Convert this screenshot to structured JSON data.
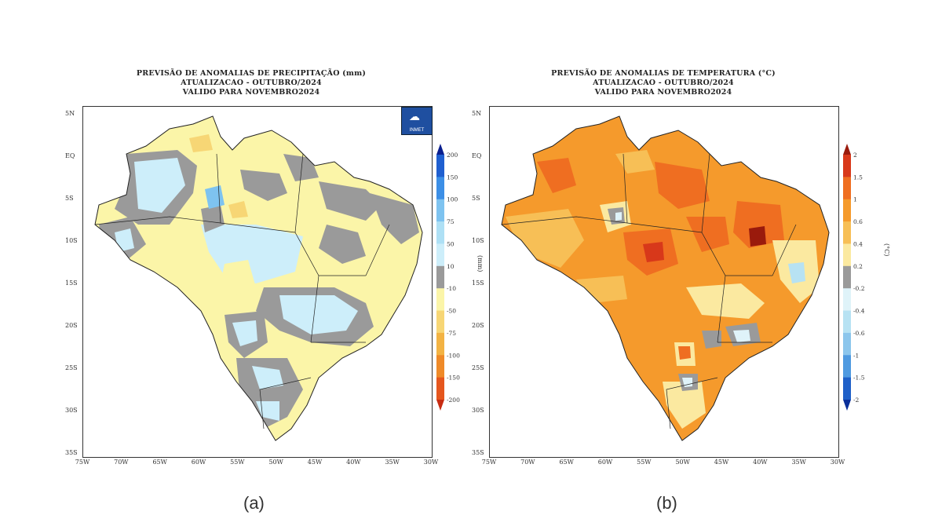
{
  "panel_a": {
    "title_1": "PREVISÃO DE ANOMALIAS DE PRECIPITAÇÃO (mm)",
    "title_2": "ATUALIZACAO - OUTUBRO/2024",
    "title_3": "VALIDO PARA NOVEMBRO2024",
    "colorbar_labels": [
      "200",
      "150",
      "100",
      "75",
      "50",
      "10",
      "-10",
      "-50",
      "-75",
      "-100",
      "-150",
      "-200"
    ],
    "colorbar_colors": [
      "#0a1f8f",
      "#1f5fd0",
      "#3c8fe6",
      "#7ec3f0",
      "#aee0f5",
      "#cdeefa",
      "#9a9a9a",
      "#fbf5a8",
      "#f7d675",
      "#f3b343",
      "#ef8a28",
      "#e5561d",
      "#c82c12"
    ],
    "colorbar_unit": "(mm)",
    "logo_text": "INMET",
    "caption": "(a)"
  },
  "panel_b": {
    "title_1": "PREVISÃO DE ANOMALIAS DE TEMPERATURA (°C)",
    "title_2": "ATUALIZACAO - OUTUBRO/2024",
    "title_3": "VALIDO PARA NOVEMBRO2024",
    "colorbar_labels": [
      "2",
      "1.5",
      "1",
      "0.6",
      "0.4",
      "0.2",
      "-0.2",
      "-0.4",
      "-0.6",
      "-1",
      "-1.5",
      "-2"
    ],
    "colorbar_colors": [
      "#9a1a0c",
      "#d8381a",
      "#ef6e21",
      "#f59a2c",
      "#f7bf56",
      "#fbe9a0",
      "#9a9a9a",
      "#dff3f9",
      "#b7e2f3",
      "#8cc6ec",
      "#4f9ae0",
      "#1f60c8",
      "#0a2f9a"
    ],
    "colorbar_unit": "(°C)",
    "caption": "(b)"
  },
  "axes": {
    "lat_labels": [
      "5N",
      "EQ",
      "5S",
      "10S",
      "15S",
      "20S",
      "25S",
      "30S",
      "35S"
    ],
    "lon_labels": [
      "75W",
      "70W",
      "65W",
      "60W",
      "55W",
      "50W",
      "45W",
      "40W",
      "35W",
      "30W"
    ]
  }
}
